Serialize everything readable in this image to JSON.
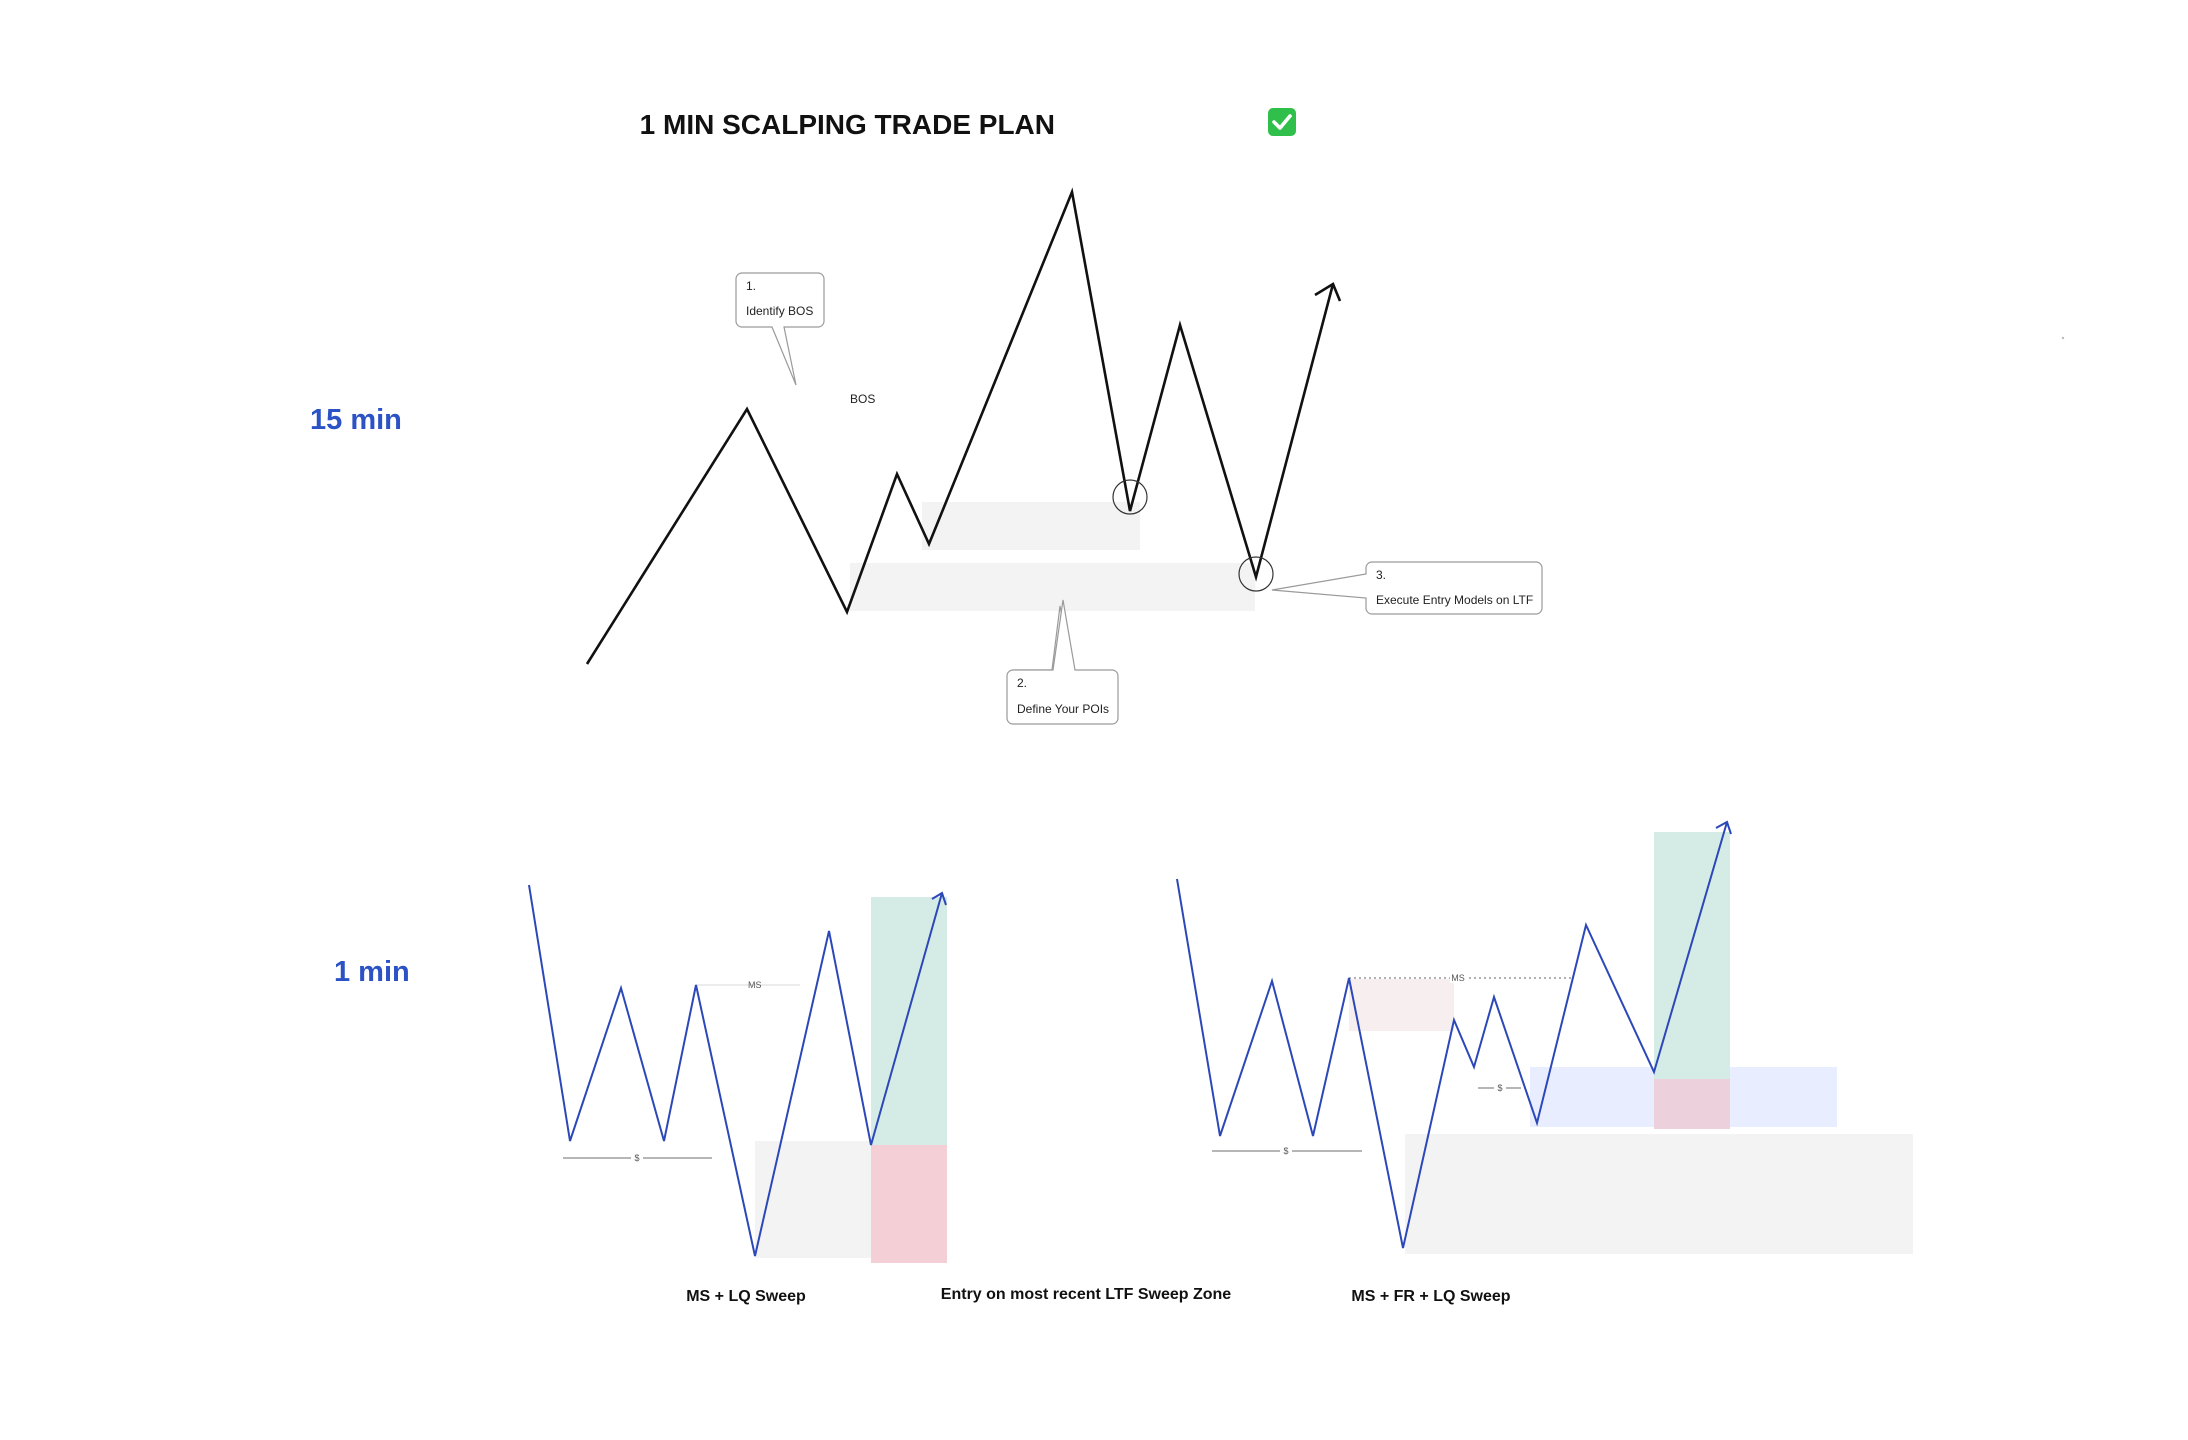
{
  "title": "1 MIN SCALPING TRADE PLAN",
  "title_icon": "check-mark-button-icon",
  "timeframes": {
    "htf_label": "15 min",
    "ltf_label": "1 min"
  },
  "htf_chart": {
    "bos_label": "BOS",
    "callouts": [
      {
        "number": "1.",
        "text": "Identify BOS"
      },
      {
        "number": "2.",
        "text": "Define Your POIs"
      },
      {
        "number": "3.",
        "text": "Execute Entry Models on LTF"
      }
    ]
  },
  "ltf_charts": {
    "left": {
      "ms_label": "MS",
      "liquidity_label": "$",
      "caption": "MS + LQ Sweep"
    },
    "center_caption": "Entry on most recent LTF Sweep Zone",
    "right": {
      "ms_label": "MS",
      "liquidity_label_low": "$",
      "liquidity_label_mid": "$",
      "caption": "MS + FR + LQ Sweep"
    }
  },
  "colors": {
    "timeframe_label": "#2c53c6",
    "price_path_htf": "#111111",
    "price_path_ltf": "#2c48b8",
    "poi_zone": "#f3f3f3",
    "take_profit_zone": "#d5ece6",
    "stop_loss_zone": "#f4cfd6",
    "fvg_zone": "#e8eeff",
    "supply_zone": "#f7eeef",
    "check_icon": "#2fbf4a"
  }
}
